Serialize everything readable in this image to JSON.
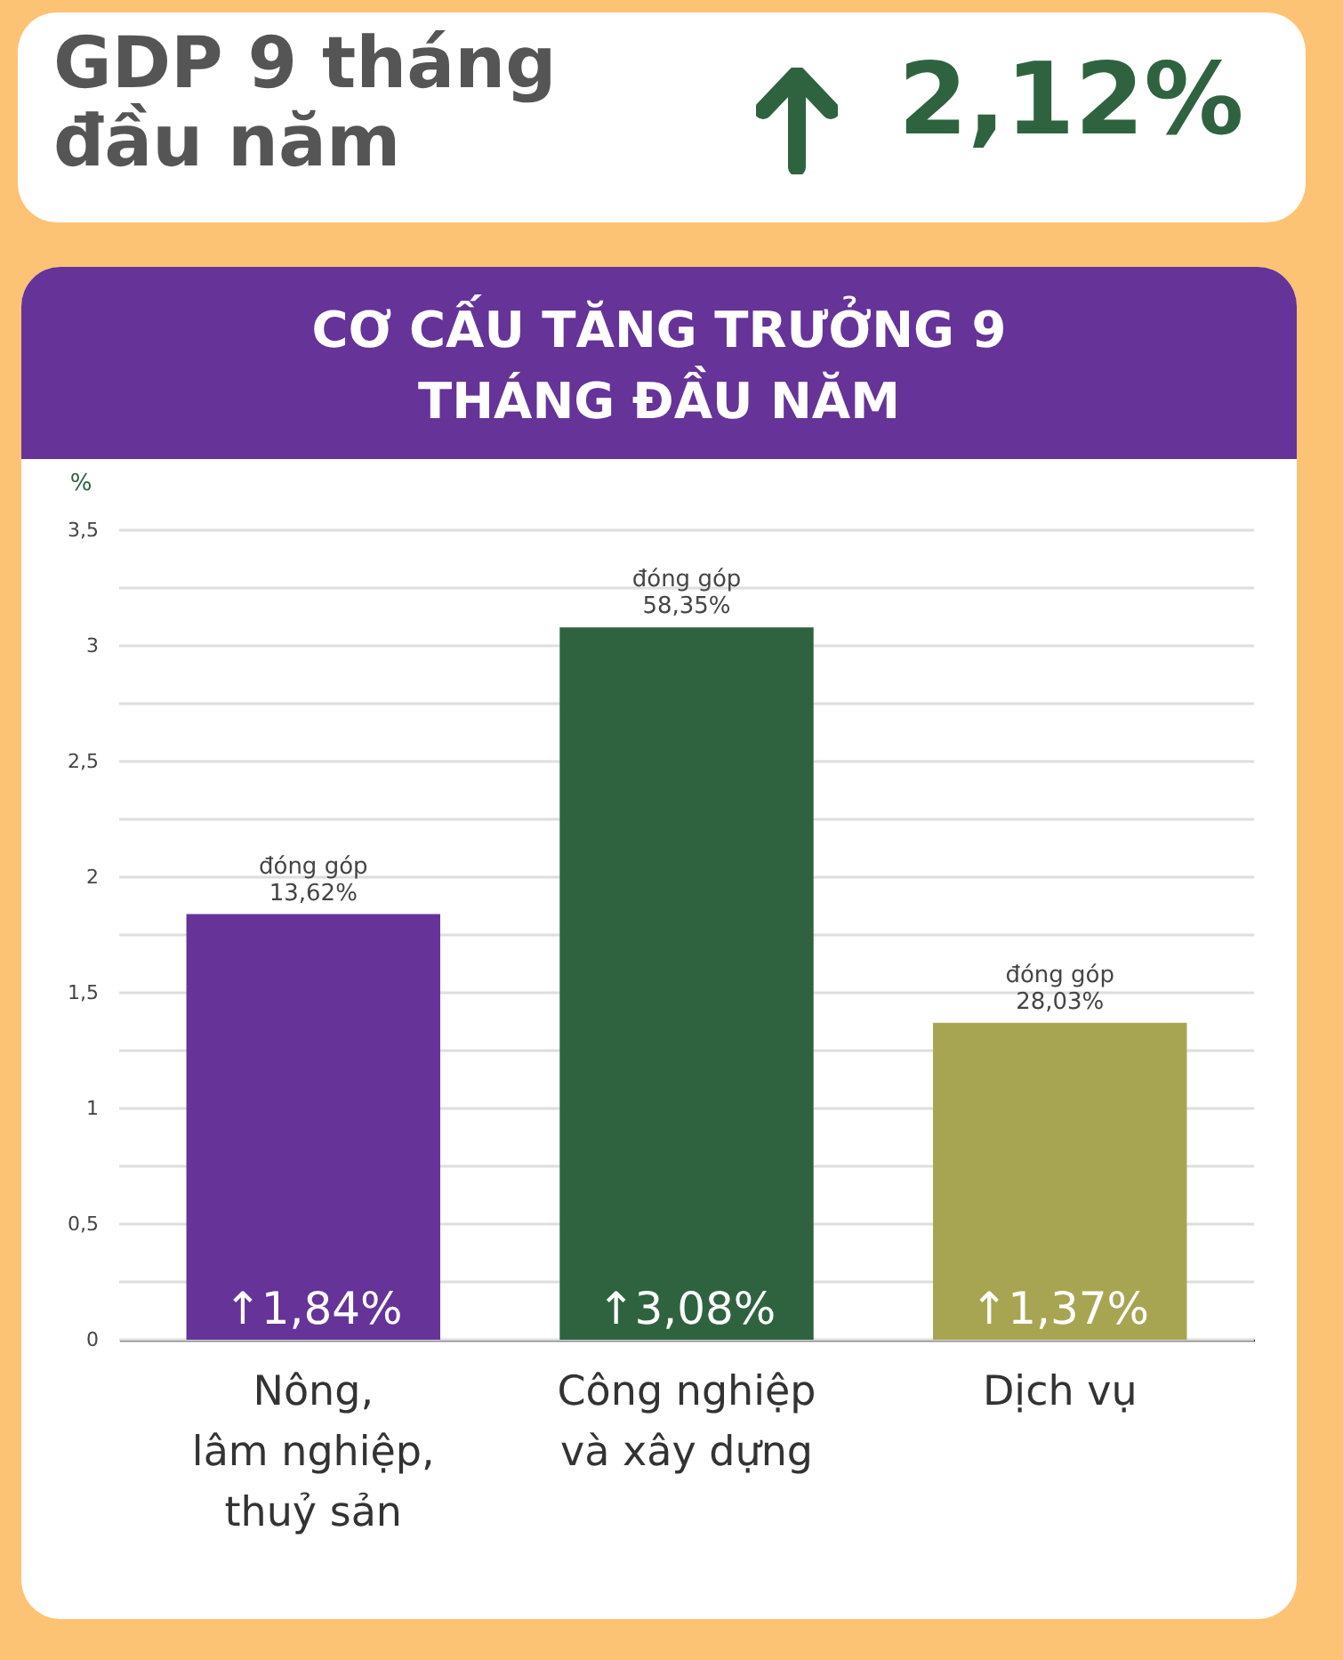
{
  "chart_data": {
    "type": "bar",
    "title": "CƠ CẤU TĂNG TRƯỞNG 9 THÁNG ĐẦU NĂM",
    "ylabel": "%",
    "categories": [
      "Nông,\nlâm nghiệp,\nthuỷ sản",
      "Công nghiệp\nvà xây dựng",
      "Dịch vụ"
    ],
    "values": [
      1.84,
      3.08,
      1.37
    ],
    "colors": [
      "#663399",
      "#2f6340",
      "#a8a552"
    ],
    "value_labels": [
      "↑1,84%",
      "↑3,08%",
      "↑1,37%"
    ],
    "ylim": [
      0,
      3.5
    ],
    "yticks": [
      0,
      {
        "value": 0.25,
        "label": null
      },
      {
        "value": 0.5,
        "label": "0,5"
      },
      {
        "value": 0.75,
        "label": null
      },
      1,
      {
        "value": 1.25,
        "label": null
      },
      {
        "value": 1.5,
        "label": "1,5"
      },
      {
        "value": 1.75,
        "label": null
      },
      2,
      {
        "value": 2.25,
        "label": null
      },
      {
        "value": 2.5,
        "label": "2,5"
      },
      {
        "value": 2.75,
        "label": null
      },
      3,
      {
        "value": 3.25,
        "label": null
      },
      {
        "value": 3.5,
        "label": "3,5"
      }
    ],
    "grid": true,
    "annotations": [
      "GDP 9 tháng đầu năm",
      "2,12%",
      {
        "text": "đóng góp\n13,62%",
        "x": "Nông,\nlâm nghiệp,\nthuỷ sản",
        "y": 1.84
      },
      {
        "text": "đóng góp\n58,35%",
        "x": "Công nghiệp\nvà xây dựng",
        "y": 3.08
      },
      {
        "text": "đóng góp\n28,03%",
        "x": "Dịch vụ",
        "y": 1.37
      }
    ]
  }
}
